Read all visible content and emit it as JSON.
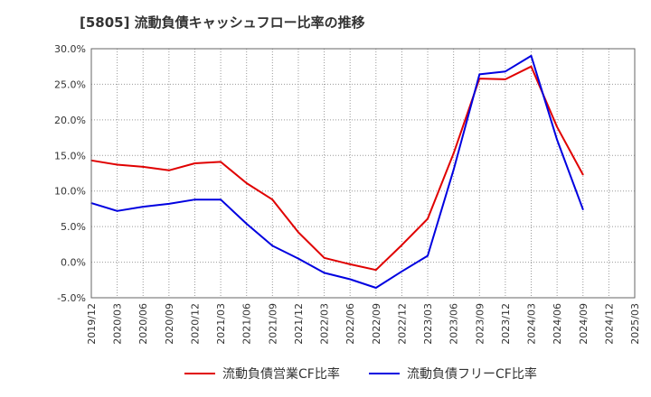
{
  "chart_data": {
    "type": "line",
    "title": "[5805]  流動負債キャッシュフロー比率の推移",
    "xlabel": "",
    "ylabel": "",
    "ylim": [
      -5,
      30
    ],
    "yticks": [
      30,
      25,
      20,
      15,
      10,
      5,
      0,
      -5
    ],
    "ytick_labels": [
      "30.0%",
      "25.0%",
      "20.0%",
      "15.0%",
      "10.0%",
      "5.0%",
      "0.0%",
      "-5.0%"
    ],
    "categories": [
      "2019/12",
      "2020/03",
      "2020/06",
      "2020/09",
      "2020/12",
      "2021/03",
      "2021/06",
      "2021/09",
      "2021/12",
      "2022/03",
      "2022/06",
      "2022/09",
      "2022/12",
      "2023/03",
      "2023/06",
      "2023/09",
      "2023/12",
      "2024/03",
      "2024/06",
      "2024/09",
      "2024/12",
      "2025/03"
    ],
    "grid": true,
    "legend_position": "bottom",
    "series": [
      {
        "name": "流動負債営業CF比率",
        "color": "#e00000",
        "values": [
          14.3,
          13.7,
          13.4,
          12.9,
          13.9,
          14.1,
          11.1,
          8.8,
          4.2,
          0.6,
          -0.3,
          -1.1,
          2.4,
          6.1,
          15.3,
          25.8,
          25.7,
          27.5,
          19.0,
          12.3,
          null,
          null
        ]
      },
      {
        "name": "流動負債フリーCF比率",
        "color": "#0000e0",
        "values": [
          8.3,
          7.2,
          7.8,
          8.2,
          8.8,
          8.8,
          5.4,
          2.3,
          0.5,
          -1.5,
          -2.4,
          -3.6,
          -1.3,
          0.9,
          13.0,
          26.4,
          26.8,
          29.0,
          17.2,
          7.4,
          null,
          null
        ]
      }
    ]
  }
}
